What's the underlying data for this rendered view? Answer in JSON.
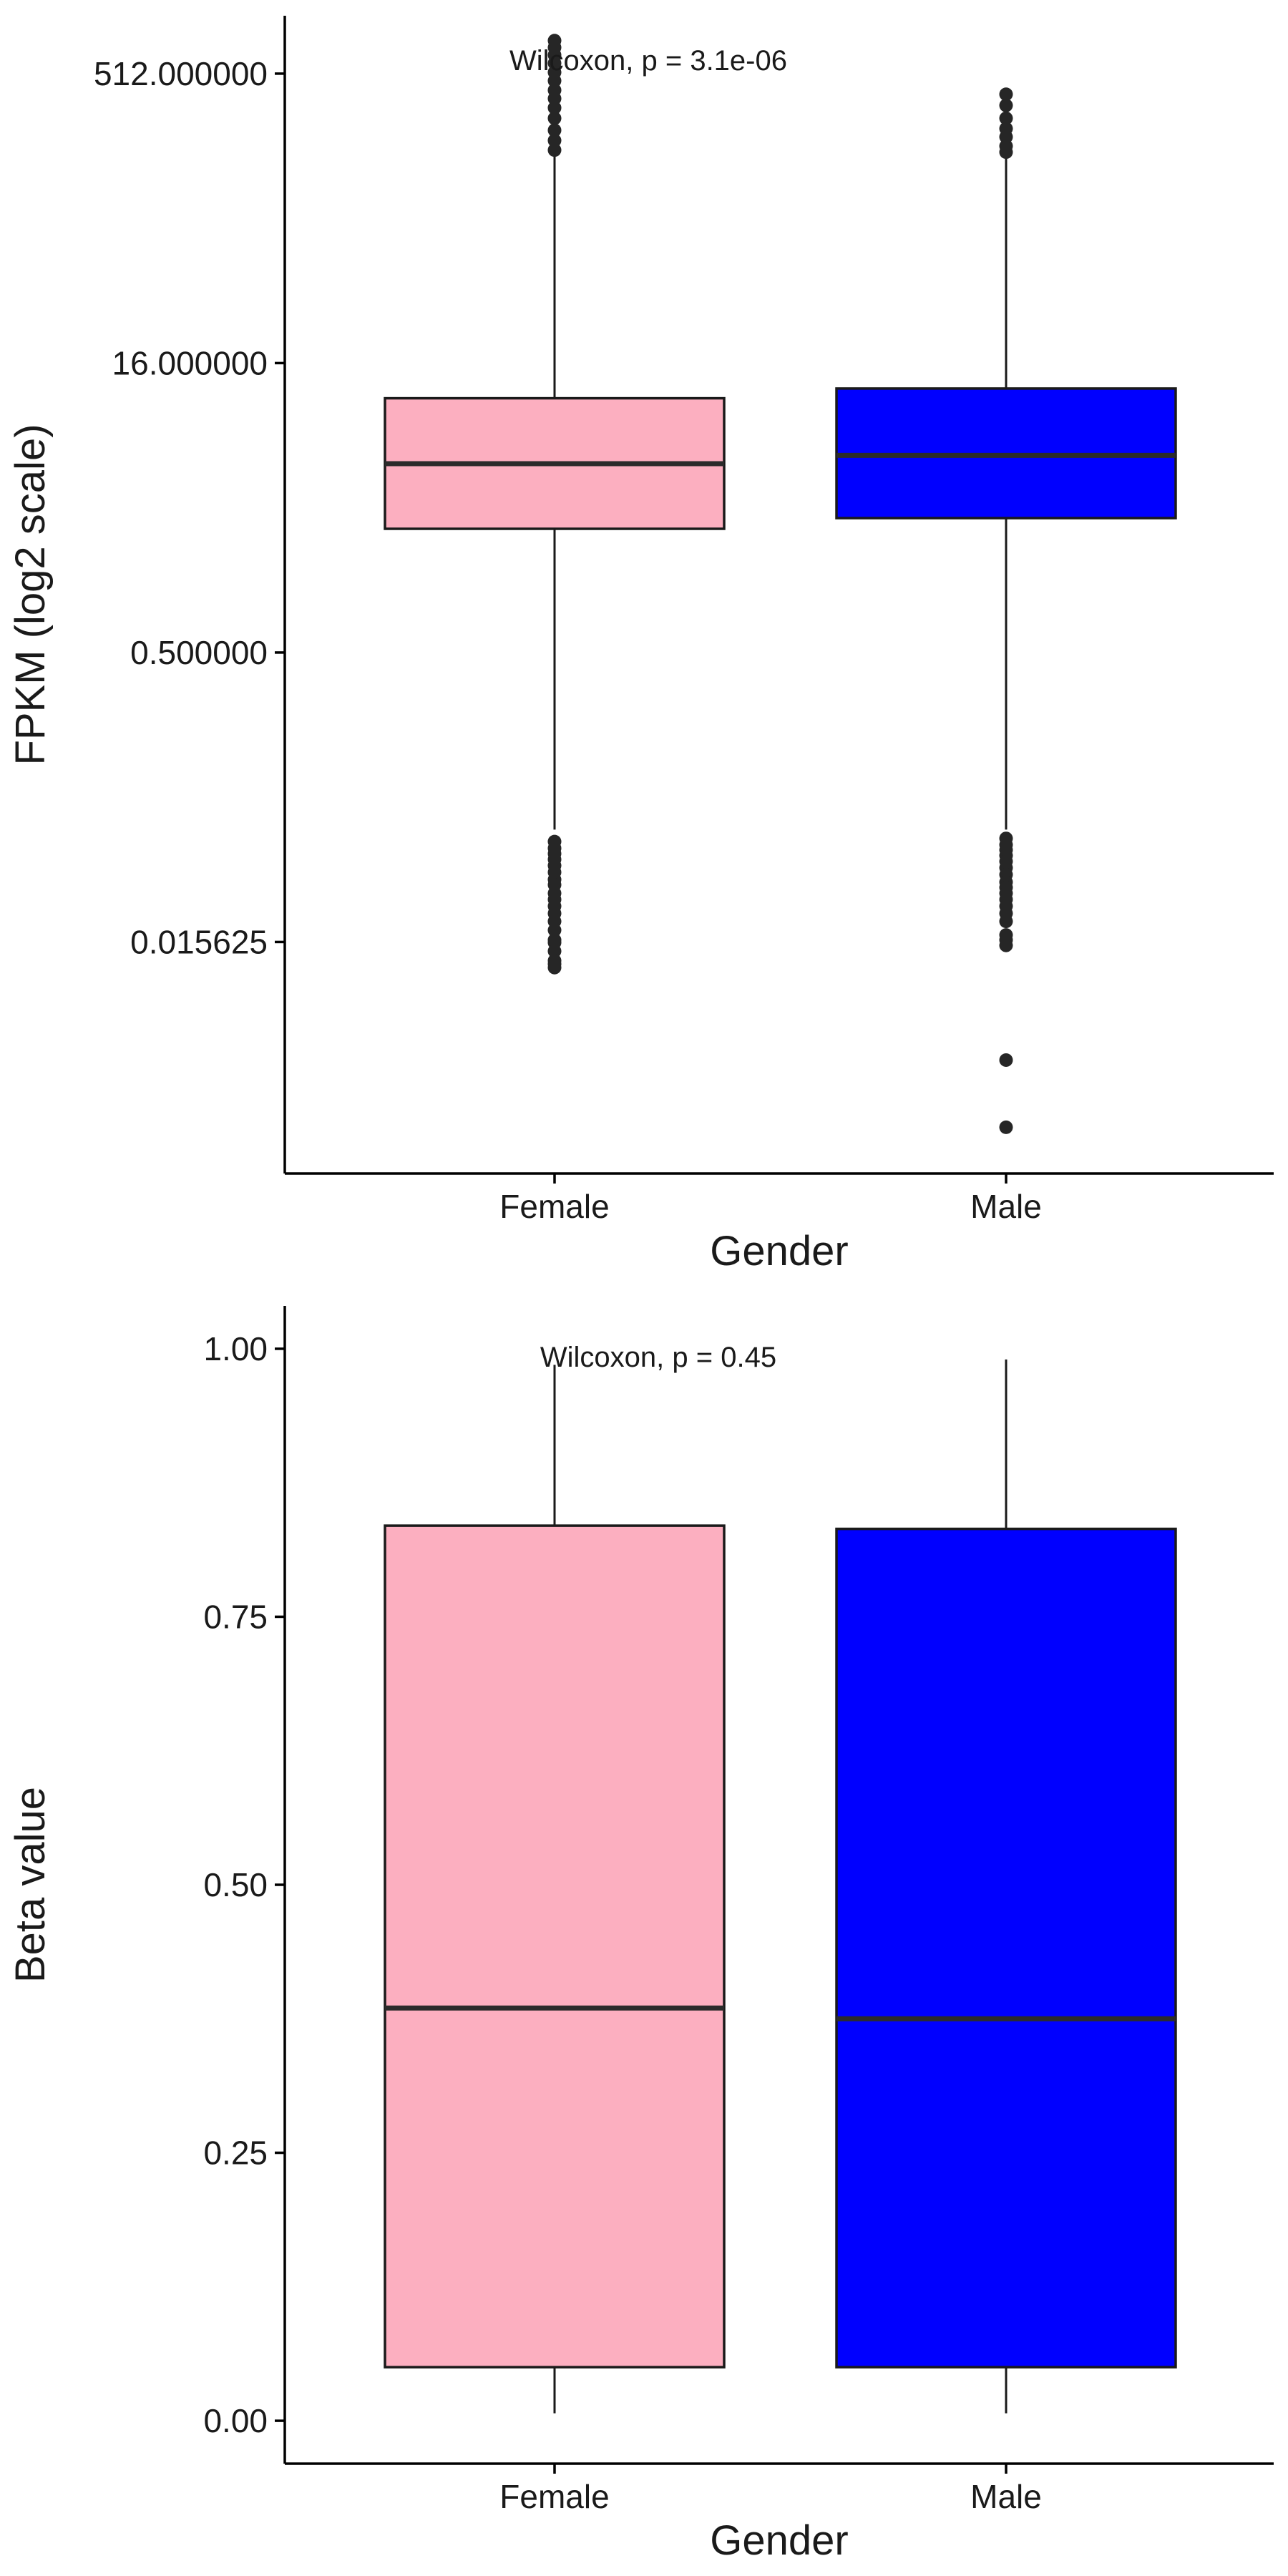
{
  "colors": {
    "female": "#FCAFC0",
    "male": "#0000FF",
    "outline": "#1a1a1a",
    "median": "#2b2b2b",
    "outlier": "#262626"
  },
  "chart_data": [
    {
      "type": "box",
      "xlabel": "Gender",
      "ylabel": "FPKM (log2 scale)",
      "y_scale": "log2",
      "ylim": [
        0.000977,
        1024
      ],
      "yticks": [
        0.015625,
        0.5,
        16,
        512
      ],
      "ytick_labels": [
        "0.015625",
        "0.500000",
        "16.000000",
        "512.000000"
      ],
      "annotation": "Wilcoxon, p = 3.1e-06",
      "grid": false,
      "legend": "none",
      "categories": [
        "Female",
        "Male"
      ],
      "boxes": [
        {
          "name": "Female",
          "whisker_low": 0.06,
          "q1": 2.2,
          "median": 4.8,
          "q3": 10.5,
          "whisker_high": 195,
          "outliers": [
            205,
            230,
            260,
            300,
            340,
            380,
            420,
            470,
            520,
            580,
            640,
            700,
            760,
            0.052,
            0.048,
            0.045,
            0.042,
            0.039,
            0.036,
            0.033,
            0.031,
            0.028,
            0.026,
            0.024,
            0.022,
            0.02,
            0.018,
            0.016,
            0.0155,
            0.014,
            0.0125,
            0.012,
            0.0115
          ]
        },
        {
          "name": "Male",
          "whisker_low": 0.06,
          "q1": 2.5,
          "median": 5.3,
          "q3": 11.8,
          "whisker_high": 190,
          "outliers": [
            200,
            215,
            240,
            265,
            300,
            350,
            400,
            0.054,
            0.05,
            0.047,
            0.044,
            0.041,
            0.038,
            0.035,
            0.032,
            0.03,
            0.028,
            0.026,
            0.024,
            0.022,
            0.02,
            0.017,
            0.016,
            0.015,
            0.0038,
            0.0017
          ]
        }
      ]
    },
    {
      "type": "box",
      "xlabel": "Gender",
      "ylabel": "Beta value",
      "y_scale": "linear",
      "ylim": [
        -0.04,
        1.04
      ],
      "yticks": [
        0,
        0.25,
        0.5,
        0.75,
        1
      ],
      "ytick_labels": [
        "0.00",
        "0.25",
        "0.50",
        "0.75",
        "1.00"
      ],
      "annotation": "Wilcoxon, p = 0.45",
      "grid": false,
      "legend": "none",
      "categories": [
        "Female",
        "Male"
      ],
      "boxes": [
        {
          "name": "Female",
          "whisker_low": 0.007,
          "q1": 0.05,
          "median": 0.385,
          "q3": 0.835,
          "whisker_high": 0.985,
          "outliers": []
        },
        {
          "name": "Male",
          "whisker_low": 0.007,
          "q1": 0.05,
          "median": 0.375,
          "q3": 0.832,
          "whisker_high": 0.99,
          "outliers": []
        }
      ]
    }
  ]
}
